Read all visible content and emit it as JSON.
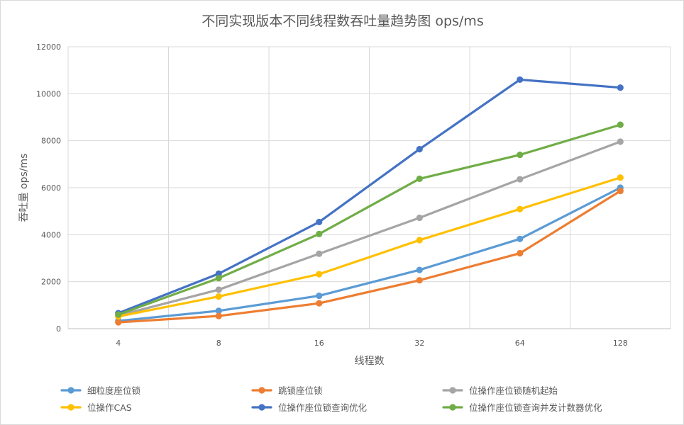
{
  "chart_data": {
    "type": "line",
    "title": "不同实现版本不同线程数吞吐量趋势图 ops/ms",
    "xlabel": "线程数",
    "ylabel": "吞吐量 ops/ms",
    "categories": [
      "4",
      "8",
      "16",
      "32",
      "64",
      "128"
    ],
    "ylim": [
      0,
      12000
    ],
    "yticks": [
      0,
      2000,
      4000,
      6000,
      8000,
      10000,
      12000
    ],
    "grid": true,
    "legend_position": "bottom",
    "series": [
      {
        "name": "细粒度座位锁",
        "color": "#5b9bd5",
        "values": [
          330,
          760,
          1400,
          2500,
          3820,
          6000
        ]
      },
      {
        "name": "跳锁座位锁",
        "color": "#ed7d31",
        "values": [
          270,
          540,
          1080,
          2060,
          3210,
          5860
        ]
      },
      {
        "name": "位操作座位锁随机起始",
        "color": "#a5a5a5",
        "values": [
          560,
          1660,
          3190,
          4720,
          6360,
          7960
        ]
      },
      {
        "name": "位操作CAS",
        "color": "#ffc000",
        "values": [
          520,
          1370,
          2320,
          3770,
          5090,
          6430
        ]
      },
      {
        "name": "位操作座位锁查询优化",
        "color": "#4472c4",
        "values": [
          660,
          2340,
          4540,
          7640,
          10600,
          10260
        ]
      },
      {
        "name": "位操作座位锁查询并发计数器优化",
        "color": "#70ad47",
        "values": [
          600,
          2150,
          4030,
          6380,
          7400,
          8680
        ]
      }
    ]
  }
}
